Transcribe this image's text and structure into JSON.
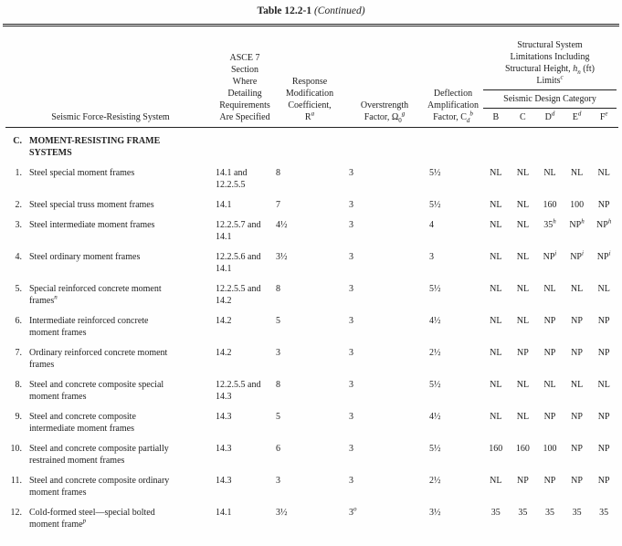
{
  "title": {
    "name": "Table 12.2-1",
    "continued": "(Continued)"
  },
  "table": {
    "header": {
      "system": "Seismic Force-Resisting System",
      "section": "ASCE 7\nSection\nWhere\nDetailing\nRequirements\nAre Specified",
      "response": {
        "lines": "Response\nModification\nCoefficient,\nR",
        "sup": "a"
      },
      "overstrength": {
        "lines": "Overstrength\nFactor, Ω",
        "sub": "0",
        "sup": "g"
      },
      "deflection": {
        "lines": "Deflection\nAmplification\nFactor, C",
        "sub": "d",
        "sup": "b"
      },
      "limits_group": {
        "part1": "Structural System\nLimitations Including\nStructural Height, ",
        "var": "h",
        "var_sub": "n",
        "part2": " (ft)\nLimits",
        "sup": "c"
      },
      "sdc_label": "Seismic Design Category",
      "sdc_columns": [
        "B",
        "C",
        "D^d",
        "E^d",
        "F^e"
      ]
    },
    "section_header": {
      "prefix": "C.",
      "label": "MOMENT-RESISTING FRAME\nSYSTEMS"
    },
    "rows": [
      {
        "num": "1.",
        "name": "Steel special moment frames",
        "section": "14.1 and\n12.2.5.5",
        "r": "8",
        "omega": "3",
        "cd": "5½",
        "sdc": [
          "NL",
          "NL",
          "NL",
          "NL",
          "NL"
        ]
      },
      {
        "num": "2.",
        "name": "Steel special truss moment frames",
        "section": "14.1",
        "r": "7",
        "omega": "3",
        "cd": "5½",
        "sdc": [
          "NL",
          "NL",
          "160",
          "100",
          "NP"
        ]
      },
      {
        "num": "3.",
        "name": "Steel intermediate moment frames",
        "section": "12.2.5.7 and\n14.1",
        "r": "4½",
        "omega": "3",
        "cd": "4",
        "sdc": [
          "NL",
          "NL",
          "35^h",
          "NP^h",
          "NP^h"
        ]
      },
      {
        "num": "4.",
        "name": "Steel ordinary moment frames",
        "section": "12.2.5.6 and\n14.1",
        "r": "3½",
        "omega": "3",
        "cd": "3",
        "sdc": [
          "NL",
          "NL",
          "NP^i",
          "NP^i",
          "NP^i"
        ]
      },
      {
        "num": "5.",
        "name": "Special reinforced concrete moment\nframes^n",
        "section": "12.2.5.5 and\n14.2",
        "r": "8",
        "omega": "3",
        "cd": "5½",
        "sdc": [
          "NL",
          "NL",
          "NL",
          "NL",
          "NL"
        ]
      },
      {
        "num": "6.",
        "name": "Intermediate reinforced concrete\nmoment frames",
        "section": "14.2",
        "r": "5",
        "omega": "3",
        "cd": "4½",
        "sdc": [
          "NL",
          "NL",
          "NP",
          "NP",
          "NP"
        ]
      },
      {
        "num": "7.",
        "name": "Ordinary reinforced concrete moment\nframes",
        "section": "14.2",
        "r": "3",
        "omega": "3",
        "cd": "2½",
        "sdc": [
          "NL",
          "NP",
          "NP",
          "NP",
          "NP"
        ]
      },
      {
        "num": "8.",
        "name": "Steel and concrete composite special\nmoment frames",
        "section": "12.2.5.5 and\n14.3",
        "r": "8",
        "omega": "3",
        "cd": "5½",
        "sdc": [
          "NL",
          "NL",
          "NL",
          "NL",
          "NL"
        ]
      },
      {
        "num": "9.",
        "name": "Steel and concrete composite\nintermediate moment frames",
        "section": "14.3",
        "r": "5",
        "omega": "3",
        "cd": "4½",
        "sdc": [
          "NL",
          "NL",
          "NP",
          "NP",
          "NP"
        ]
      },
      {
        "num": "10.",
        "name": "Steel and concrete composite partially\nrestrained moment frames",
        "section": "14.3",
        "r": "6",
        "omega": "3",
        "cd": "5½",
        "sdc": [
          "160",
          "160",
          "100",
          "NP",
          "NP"
        ]
      },
      {
        "num": "11.",
        "name": "Steel and concrete composite ordinary\nmoment frames",
        "section": "14.3",
        "r": "3",
        "omega": "3",
        "cd": "2½",
        "sdc": [
          "NL",
          "NP",
          "NP",
          "NP",
          "NP"
        ]
      },
      {
        "num": "12.",
        "name": "Cold-formed steel—special bolted\nmoment frame^p",
        "section": "14.1",
        "r": "3½",
        "omega": "3^o",
        "cd": "3½",
        "sdc": [
          "35",
          "35",
          "35",
          "35",
          "35"
        ]
      }
    ]
  }
}
